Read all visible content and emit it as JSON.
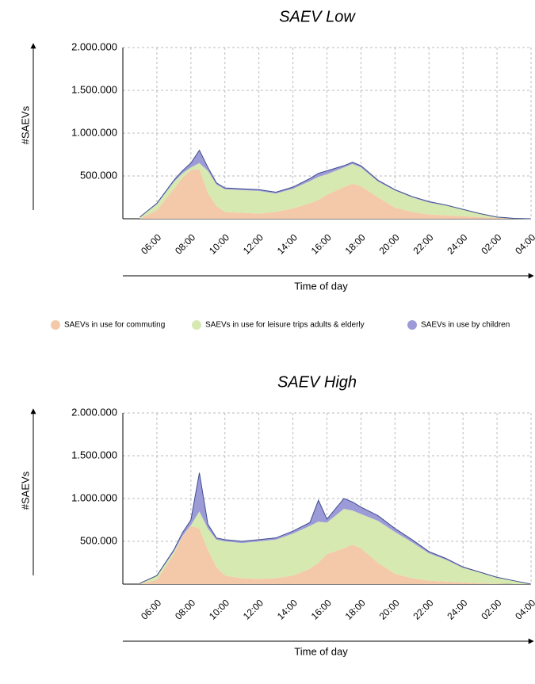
{
  "chart_data": [
    {
      "type": "area",
      "stacked": true,
      "title": "SAEV Low",
      "xlabel": "Time of day",
      "ylabel": "#SAEVs",
      "x": [
        5,
        6,
        7,
        7.5,
        8,
        8.5,
        9,
        9.5,
        10,
        11,
        12,
        13,
        14,
        15,
        15.5,
        16,
        17,
        17.5,
        18,
        19,
        20,
        21,
        22,
        23,
        24,
        25,
        26,
        27,
        28
      ],
      "series": [
        {
          "name": "SAEVs in use for commuting",
          "color": "#f4c9a9",
          "values": [
            0,
            100000,
            350000,
            480000,
            570000,
            580000,
            300000,
            150000,
            80000,
            70000,
            60000,
            80000,
            120000,
            180000,
            220000,
            280000,
            370000,
            410000,
            380000,
            250000,
            130000,
            80000,
            50000,
            40000,
            30000,
            20000,
            10000,
            5000,
            0
          ]
        },
        {
          "name": "SAEVs in use for leisure trips adults & elderly",
          "color": "#d6e9b1",
          "values": [
            20000,
            70000,
            80000,
            50000,
            30000,
            70000,
            260000,
            250000,
            265000,
            265000,
            265000,
            215000,
            230000,
            260000,
            270000,
            240000,
            230000,
            230000,
            220000,
            185000,
            200000,
            170000,
            140000,
            115000,
            75000,
            40000,
            10000,
            0,
            0
          ]
        },
        {
          "name": "SAEVs in use by children",
          "color": "#9c9bd8",
          "values": [
            0,
            10000,
            20000,
            30000,
            50000,
            150000,
            40000,
            20000,
            15000,
            15000,
            15000,
            15000,
            20000,
            30000,
            40000,
            40000,
            20000,
            20000,
            20000,
            15000,
            10000,
            10000,
            10000,
            5000,
            5000,
            0,
            0,
            0,
            0
          ]
        }
      ],
      "xlim": [
        4,
        28
      ],
      "ylim": [
        0,
        2000000
      ],
      "xticks": [
        {
          "value": 6,
          "label": "06:00"
        },
        {
          "value": 8,
          "label": "08:00"
        },
        {
          "value": 10,
          "label": "10:00"
        },
        {
          "value": 12,
          "label": "12:00"
        },
        {
          "value": 14,
          "label": "14:00"
        },
        {
          "value": 16,
          "label": "16:00"
        },
        {
          "value": 18,
          "label": "18:00"
        },
        {
          "value": 20,
          "label": "20:00"
        },
        {
          "value": 22,
          "label": "22:00"
        },
        {
          "value": 24,
          "label": "24:00"
        },
        {
          "value": 26,
          "label": "02:00"
        },
        {
          "value": 28,
          "label": "04:00"
        }
      ],
      "yticks": [
        {
          "value": 500000,
          "label": "500.000"
        },
        {
          "value": 1000000,
          "label": "1.000.000"
        },
        {
          "value": 1500000,
          "label": "1.500.000"
        },
        {
          "value": 2000000,
          "label": "2.000.000"
        }
      ],
      "grid": true,
      "legend": "bottom"
    },
    {
      "type": "area",
      "stacked": true,
      "title": "SAEV High",
      "xlabel": "Time of day",
      "ylabel": "#SAEVs",
      "x": [
        5,
        6,
        7,
        7.5,
        8,
        8.5,
        9,
        9.5,
        10,
        11,
        12,
        13,
        14,
        15,
        15.5,
        16,
        17,
        17.5,
        18,
        19,
        20,
        21,
        22,
        23,
        24,
        25,
        26,
        27,
        28
      ],
      "series": [
        {
          "name": "SAEVs in use for commuting",
          "color": "#f4c9a9",
          "values": [
            0,
            50000,
            350000,
            550000,
            680000,
            650000,
            400000,
            200000,
            100000,
            70000,
            60000,
            70000,
            100000,
            180000,
            250000,
            350000,
            420000,
            460000,
            420000,
            250000,
            120000,
            70000,
            40000,
            30000,
            20000,
            10000,
            5000,
            0,
            0
          ]
        },
        {
          "name": "SAEVs in use for leisure trips adults & elderly",
          "color": "#d6e9b1",
          "values": [
            10000,
            45000,
            30000,
            10000,
            10000,
            200000,
            250000,
            320000,
            400000,
            410000,
            440000,
            450000,
            490000,
            500000,
            480000,
            370000,
            460000,
            400000,
            400000,
            490000,
            490000,
            420000,
            320000,
            255000,
            170000,
            125000,
            70000,
            40000,
            0
          ]
        },
        {
          "name": "SAEVs in use by children",
          "color": "#9c9bd8",
          "values": [
            0,
            5000,
            20000,
            40000,
            60000,
            450000,
            50000,
            20000,
            20000,
            20000,
            20000,
            20000,
            30000,
            40000,
            250000,
            40000,
            120000,
            100000,
            80000,
            60000,
            40000,
            30000,
            20000,
            15000,
            10000,
            5000,
            5000,
            0,
            0
          ]
        }
      ],
      "xlim": [
        4,
        28
      ],
      "ylim": [
        0,
        2000000
      ],
      "xticks": [
        {
          "value": 6,
          "label": "06:00"
        },
        {
          "value": 8,
          "label": "08:00"
        },
        {
          "value": 10,
          "label": "10:00"
        },
        {
          "value": 12,
          "label": "12:00"
        },
        {
          "value": 14,
          "label": "14:00"
        },
        {
          "value": 16,
          "label": "16:00"
        },
        {
          "value": 18,
          "label": "18:00"
        },
        {
          "value": 20,
          "label": "20:00"
        },
        {
          "value": 22,
          "label": "22:00"
        },
        {
          "value": 24,
          "label": "24:00"
        },
        {
          "value": 26,
          "label": "02:00"
        },
        {
          "value": 28,
          "label": "04:00"
        }
      ],
      "yticks": [
        {
          "value": 500000,
          "label": "500.000"
        },
        {
          "value": 1000000,
          "label": "1.000.000"
        },
        {
          "value": 1500000,
          "label": "1.500.000"
        },
        {
          "value": 2000000,
          "label": "2.000.000"
        }
      ],
      "grid": true,
      "legend": "bottom"
    }
  ]
}
